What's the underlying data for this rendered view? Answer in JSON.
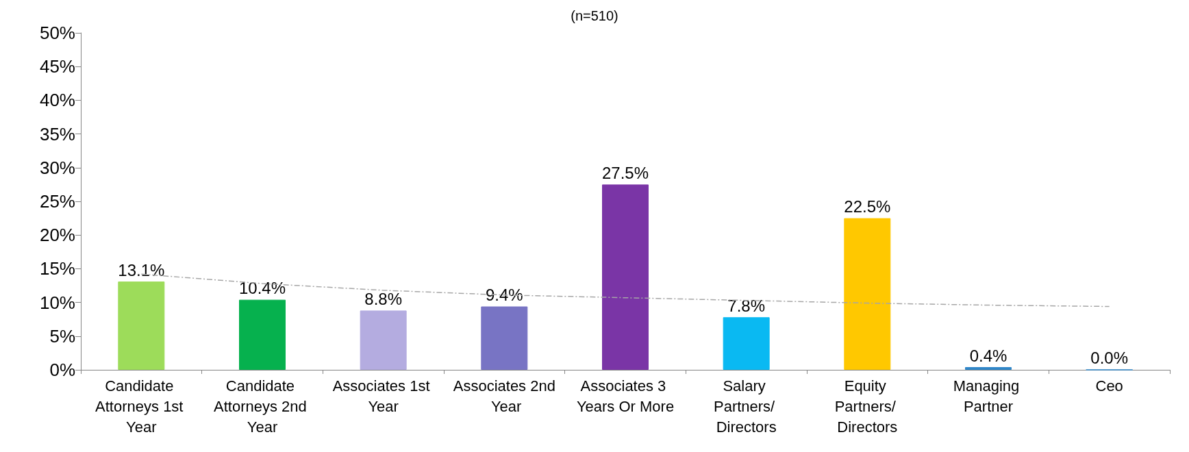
{
  "chart_data": {
    "type": "bar",
    "title": "(n=510)",
    "categories": [
      "Candidate Attorneys 1st Year",
      "Candidate Attorneys 2nd Year",
      "Associates 1st Year",
      "Associates 2nd Year",
      "Associates 3 Years Or More",
      "Salary Partners/ Directors",
      "Equity Partners/ Directors",
      "Managing Partner",
      "Ceo"
    ],
    "series": [
      {
        "values": [
          13.1,
          10.4,
          8.8,
          9.4,
          27.5,
          7.8,
          22.5,
          0.4,
          0.0
        ],
        "colors": [
          "#9ddc5a",
          "#06b14e",
          "#b4ace0",
          "#7874c4",
          "#7a35a6",
          "#0ab9f2",
          "#ffc800",
          "#2f86c8",
          "#2f86c8"
        ],
        "value_labels": [
          "13.1%",
          "10.4%",
          "8.8%",
          "9.4%",
          "27.5%",
          "7.8%",
          "22.5%",
          "0.4%",
          "0.0%"
        ]
      },
      {
        "type": "line",
        "color": "#a6a6a6",
        "line_style": "dashed",
        "marker": "none",
        "x": [
          "Candidate Attorneys 1st Year",
          "Candidate Attorneys 2nd Year",
          "Associates 1st Year",
          "Associates 2nd Year",
          "Associates 3 Years Or More",
          "Salary Partners/ Directors",
          "Equity Partners/ Directors",
          "Managing Partner",
          "Ceo"
        ],
        "values": [
          14.2,
          12.8,
          11.8,
          11.1,
          10.7,
          10.3,
          9.9,
          9.6,
          9.4
        ]
      }
    ],
    "ylim": [
      0,
      50
    ],
    "yticks": [
      {
        "value": 0,
        "label": "0%"
      },
      {
        "value": 5,
        "label": "5%"
      },
      {
        "value": 10,
        "label": "10%"
      },
      {
        "value": 15,
        "label": "15%"
      },
      {
        "value": 20,
        "label": "20%"
      },
      {
        "value": 25,
        "label": "25%"
      },
      {
        "value": 30,
        "label": "30%"
      },
      {
        "value": 35,
        "label": "35%"
      },
      {
        "value": 40,
        "label": "40%"
      },
      {
        "value": 45,
        "label": "45%"
      },
      {
        "value": 50,
        "label": "50%"
      }
    ],
    "grid": false
  }
}
